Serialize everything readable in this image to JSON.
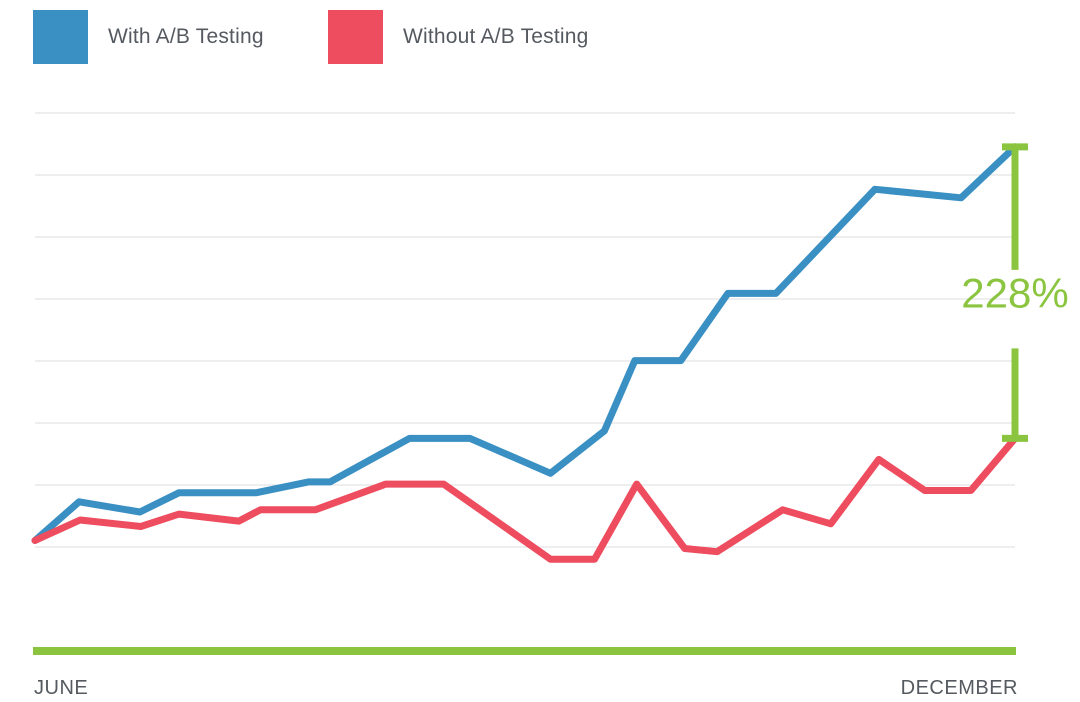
{
  "legend": {
    "with_label": "With A/B Testing",
    "without_label": "Without A/B Testing"
  },
  "colors": {
    "with": "#3a8fc3",
    "without": "#ee4d5f",
    "accent": "#8bc53f",
    "grid": "#dcdcdc"
  },
  "chart_data": {
    "type": "line",
    "x_start_label": "JUNE",
    "x_end_label": "DECEMBER",
    "ylim": [
      0,
      100
    ],
    "grid": true,
    "legend_position": "top-left",
    "annotation": "228%",
    "series": [
      {
        "name": "With A/B Testing",
        "x": [
          0,
          4.5,
          10.7,
          14.7,
          22.6,
          27.9,
          30.1,
          38.2,
          44.4,
          52.6,
          58.1,
          61.2,
          65.9,
          70.7,
          75.6,
          85.7,
          94.5,
          100
        ],
        "y": [
          20.4,
          27.6,
          25.7,
          29.3,
          29.3,
          31.3,
          31.3,
          39.4,
          39.4,
          32.9,
          40.8,
          53.9,
          53.9,
          66.4,
          66.4,
          85.8,
          84.2,
          93.7
        ]
      },
      {
        "name": "Without A/B Testing",
        "x": [
          0,
          4.6,
          10.8,
          14.7,
          20.8,
          23,
          28.6,
          35.8,
          41.7,
          52.6,
          57.1,
          61.4,
          66.3,
          69.6,
          76.3,
          81.2,
          86.1,
          90.8,
          95.5,
          100
        ],
        "y": [
          20.4,
          24.2,
          23,
          25.3,
          24,
          26.1,
          26.1,
          30.9,
          30.9,
          16.9,
          16.9,
          30.9,
          18.9,
          18.3,
          26.1,
          23.5,
          35.5,
          29.7,
          29.7,
          39.4
        ]
      }
    ]
  }
}
